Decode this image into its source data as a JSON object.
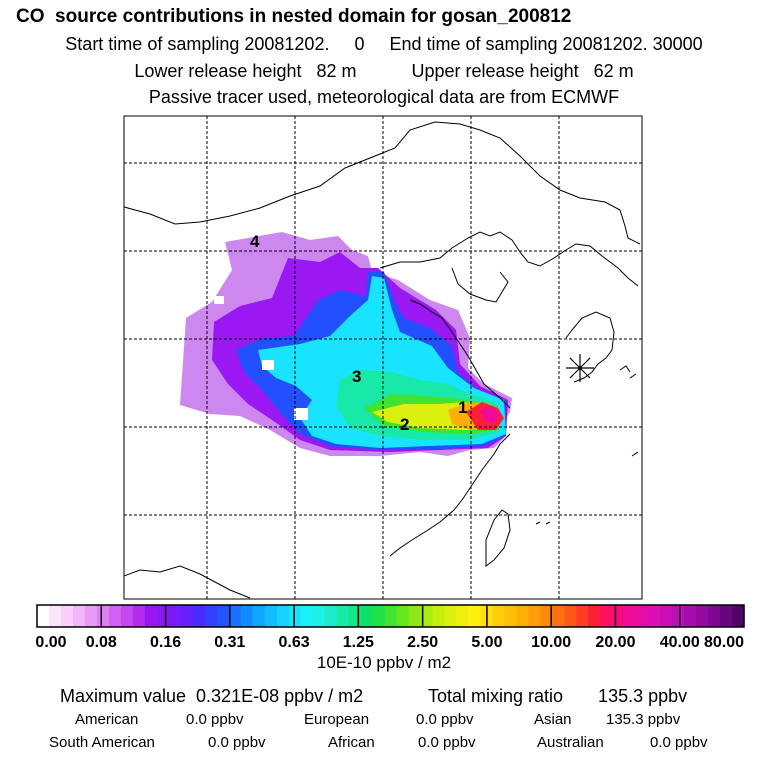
{
  "header": {
    "title": "CO  source contributions in nested domain for gosan_200812",
    "line1": "Start time of sampling 20081202.     0     End time of sampling 20081202. 30000",
    "line2": "Lower release height   82 m           Upper release height   62 m",
    "line3": "Passive tracer used, meteorological data are from ECMWF"
  },
  "map": {
    "source_labels": [
      "1",
      "2",
      "3",
      "4"
    ]
  },
  "colorbar": {
    "tick_labels": [
      "0.00",
      "0.08",
      "0.16",
      "0.31",
      "0.63",
      "1.25",
      "2.50",
      "5.00",
      "10.00",
      "20.00",
      "40.00",
      "80.00"
    ],
    "unit": "10E-10 ppbv / m2",
    "colors": [
      "#ffffff",
      "#fbe6fd",
      "#f6d0fb",
      "#f0b6f8",
      "#e89bf6",
      "#de7ff4",
      "#d263f2",
      "#c447f0",
      "#b52cee",
      "#9a16f0",
      "#8a18f5",
      "#7a1cfa",
      "#6420ff",
      "#4a2cff",
      "#3440ff",
      "#2454ff",
      "#1870ff",
      "#108cff",
      "#10a6ff",
      "#12bcff",
      "#16d2ff",
      "#18e4ff",
      "#1cf0f8",
      "#1df0e4",
      "#1cecc8",
      "#18e8a8",
      "#14e68a",
      "#10e068",
      "#20e048",
      "#40e430",
      "#64e81c",
      "#8ae814",
      "#a8ec10",
      "#c4f010",
      "#dcf010",
      "#f0f010",
      "#fff00e",
      "#ffe00c",
      "#ffd00a",
      "#ffc008",
      "#ffae08",
      "#ff9c08",
      "#ff8808",
      "#ff7010",
      "#ff5818",
      "#ff3c24",
      "#ff2038",
      "#ff1060",
      "#f80c80",
      "#f00c98",
      "#e80ca8",
      "#dc10b4",
      "#cc10b8",
      "#bc10b4",
      "#a80cac",
      "#940aa0",
      "#7e0892",
      "#680680",
      "#500468"
    ]
  },
  "stats": {
    "maximum": "Maximum value  0.321E-08 ppbv / m2",
    "total": "Total mixing ratio       135.3 ppbv",
    "regions": [
      {
        "name": "American",
        "value": "0.0 ppbv"
      },
      {
        "name": "European",
        "value": "0.0 ppbv"
      },
      {
        "name": "Asian",
        "value": "135.3 ppbv"
      },
      {
        "name": "South American",
        "value": "0.0 ppbv"
      },
      {
        "name": "African",
        "value": "0.0 ppbv"
      },
      {
        "name": "Australian",
        "value": "0.0 ppbv"
      }
    ]
  },
  "chart_data": {
    "type": "heatmap",
    "title": "CO  source contributions in nested domain for gosan_200812",
    "colorbar_levels": [
      0.0,
      0.08,
      0.16,
      0.31,
      0.63,
      1.25,
      2.5,
      5.0,
      10.0,
      20.0,
      40.0,
      80.0
    ],
    "colorbar_unit": "10E-10 ppbv / m2",
    "labeled_sources": [
      {
        "label": "1",
        "level": "10.00-20.00"
      },
      {
        "label": "2",
        "level": "2.50-5.00"
      },
      {
        "label": "3",
        "level": "0.31-0.63"
      },
      {
        "label": "4",
        "level": "0.08-0.16"
      }
    ],
    "grid": true,
    "legend_placement": "bottom"
  }
}
